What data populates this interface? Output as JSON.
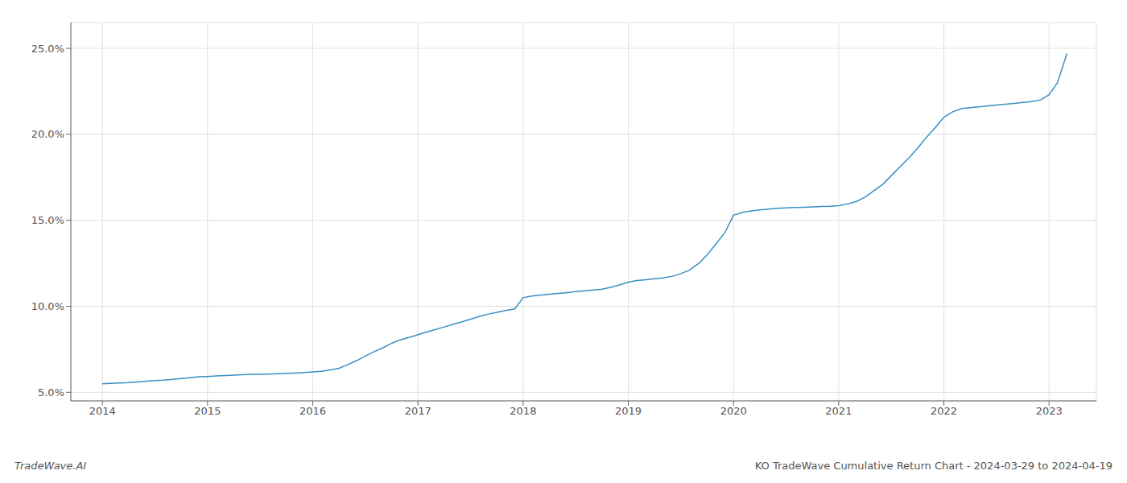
{
  "chart_data": {
    "type": "line",
    "title": "KO TradeWave Cumulative Return Chart - 2024-03-29 to 2024-04-19",
    "annotations": [
      "TradeWave.AI"
    ],
    "color": "#3a8fc4",
    "grid": true,
    "x": [
      2014.0,
      2014.08,
      2014.17,
      2014.25,
      2014.33,
      2014.42,
      2014.5,
      2014.58,
      2014.67,
      2014.75,
      2014.83,
      2014.92,
      2015.0,
      2015.08,
      2015.17,
      2015.25,
      2015.33,
      2015.42,
      2015.5,
      2015.58,
      2015.67,
      2015.75,
      2015.83,
      2015.92,
      2016.0,
      2016.08,
      2016.17,
      2016.25,
      2016.33,
      2016.42,
      2016.5,
      2016.58,
      2016.67,
      2016.75,
      2016.83,
      2016.92,
      2017.0,
      2017.08,
      2017.17,
      2017.25,
      2017.33,
      2017.42,
      2017.5,
      2017.58,
      2017.67,
      2017.75,
      2017.83,
      2017.92,
      2018.0,
      2018.08,
      2018.17,
      2018.25,
      2018.33,
      2018.42,
      2018.5,
      2018.58,
      2018.67,
      2018.75,
      2018.83,
      2018.92,
      2019.0,
      2019.08,
      2019.17,
      2019.25,
      2019.33,
      2019.42,
      2019.5,
      2019.58,
      2019.67,
      2019.75,
      2019.83,
      2019.92,
      2020.0,
      2020.08,
      2020.17,
      2020.25,
      2020.33,
      2020.42,
      2020.5,
      2020.58,
      2020.67,
      2020.75,
      2020.83,
      2020.92,
      2021.0,
      2021.08,
      2021.17,
      2021.25,
      2021.33,
      2021.42,
      2021.5,
      2021.58,
      2021.67,
      2021.75,
      2021.83,
      2021.92,
      2022.0,
      2022.08,
      2022.17,
      2022.25,
      2022.33,
      2022.42,
      2022.5,
      2022.58,
      2022.67,
      2022.75,
      2022.83,
      2022.92,
      2023.0,
      2023.08,
      2023.17
    ],
    "values": [
      5.5,
      5.52,
      5.54,
      5.56,
      5.6,
      5.65,
      5.68,
      5.7,
      5.75,
      5.8,
      5.85,
      5.9,
      5.92,
      5.95,
      5.98,
      6.0,
      6.02,
      6.04,
      6.05,
      6.06,
      6.08,
      6.1,
      6.12,
      6.15,
      6.18,
      6.22,
      6.3,
      6.4,
      6.6,
      6.85,
      7.1,
      7.35,
      7.6,
      7.85,
      8.05,
      8.2,
      8.35,
      8.5,
      8.65,
      8.8,
      8.95,
      9.1,
      9.25,
      9.4,
      9.55,
      9.65,
      9.75,
      9.85,
      10.5,
      10.6,
      10.65,
      10.7,
      10.75,
      10.8,
      10.85,
      10.9,
      10.95,
      11.0,
      11.1,
      11.25,
      11.4,
      11.5,
      11.55,
      11.6,
      11.65,
      11.75,
      11.9,
      12.1,
      12.5,
      13.0,
      13.6,
      14.3,
      15.3,
      15.45,
      15.55,
      15.6,
      15.65,
      15.7,
      15.72,
      15.74,
      15.76,
      15.78,
      15.8,
      15.82,
      15.85,
      15.95,
      16.1,
      16.35,
      16.7,
      17.1,
      17.6,
      18.1,
      18.65,
      19.2,
      19.8,
      20.4,
      21.0,
      21.3,
      21.5,
      21.55,
      21.6,
      21.65,
      21.7,
      21.75,
      21.8,
      21.85,
      21.9,
      22.0,
      22.3,
      23.0,
      24.7
    ],
    "xlim": [
      2013.7,
      2023.45
    ],
    "ylim": [
      4.5,
      26.5
    ],
    "xticks": [
      2014,
      2015,
      2016,
      2017,
      2018,
      2019,
      2020,
      2021,
      2022,
      2023
    ],
    "yticks": [
      {
        "value": 5.0,
        "label": "5.0%"
      },
      {
        "value": 10.0,
        "label": "10.0%"
      },
      {
        "value": 15.0,
        "label": "15.0%"
      },
      {
        "value": 20.0,
        "label": "20.0%"
      },
      {
        "value": 25.0,
        "label": "25.0%"
      }
    ]
  }
}
